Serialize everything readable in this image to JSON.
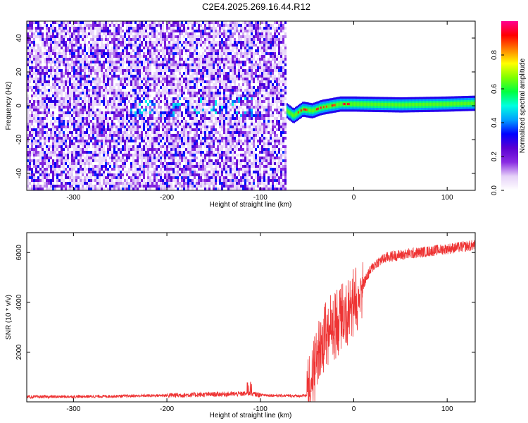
{
  "figure": {
    "title": "C2E4.2025.269.16.44.R12"
  },
  "chart_data": [
    {
      "type": "heatmap",
      "xlabel": "Height of straight line (km)",
      "ylabel": "Frequency (Hz)",
      "xlim": [
        -350,
        130
      ],
      "ylim": [
        -50,
        50
      ],
      "x_ticks": [
        -300,
        -200,
        -100,
        0,
        100
      ],
      "y_ticks": [
        -40,
        -20,
        0,
        20,
        40
      ],
      "colorbar": {
        "label": "Normalized spectral amplitude",
        "range": [
          0.0,
          1.0
        ],
        "ticks": [
          0.0,
          0.2,
          0.4,
          0.6,
          0.8
        ],
        "colormap": [
          "#ffffff",
          "#e6d2f8",
          "#8a2be2",
          "#5a00d2",
          "#0000ff",
          "#00a0ff",
          "#00ffe0",
          "#00ff40",
          "#80ff00",
          "#ffff00",
          "#ff8000",
          "#ff0000",
          "#ff0090"
        ]
      },
      "noise_region_x": [
        -350,
        -72
      ],
      "signal_ridge": [
        {
          "x": -72,
          "f": -3
        },
        {
          "x": -65,
          "f": -6
        },
        {
          "x": -55,
          "f": -2
        },
        {
          "x": -45,
          "f": -3
        },
        {
          "x": -35,
          "f": -1
        },
        {
          "x": -25,
          "f": 0
        },
        {
          "x": -15,
          "f": 1
        },
        {
          "x": 0,
          "f": 1
        },
        {
          "x": 50,
          "f": 0.5
        },
        {
          "x": 100,
          "f": 1
        },
        {
          "x": 130,
          "f": 1.5
        }
      ]
    },
    {
      "type": "line",
      "xlabel": "Height of straight line (km)",
      "ylabel": "SNR (10 * v/v)",
      "xlim": [
        -350,
        130
      ],
      "ylim": [
        0,
        6800
      ],
      "x_ticks": [
        -300,
        -200,
        -100,
        0,
        100
      ],
      "y_ticks": [
        2000,
        4000,
        6000
      ],
      "color": "#ee3333",
      "series": [
        {
          "x": [
            -350,
            -300,
            -250,
            -200,
            -150,
            -110,
            -100,
            -80,
            -55,
            -50,
            -45,
            -40,
            -35,
            -30,
            -25,
            -20,
            -15,
            -10,
            -5,
            0,
            5,
            10,
            15,
            20,
            25,
            30,
            35,
            40,
            50,
            60,
            80,
            100,
            120,
            130
          ],
          "y": [
            200,
            210,
            230,
            260,
            300,
            330,
            280,
            250,
            240,
            260,
            800,
            1500,
            2300,
            2600,
            2900,
            3100,
            3300,
            3500,
            3700,
            4000,
            4300,
            4700,
            5100,
            5400,
            5600,
            5700,
            5800,
            5850,
            5900,
            5950,
            6050,
            6150,
            6250,
            6300
          ]
        }
      ]
    }
  ]
}
